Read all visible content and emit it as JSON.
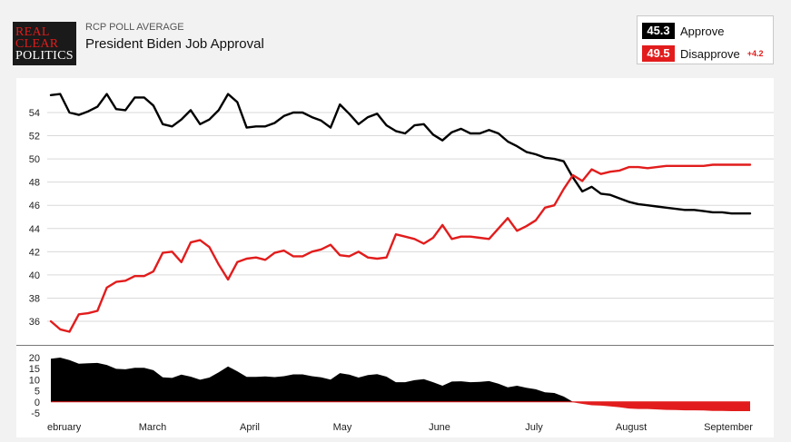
{
  "header": {
    "logo_line1": "REAL",
    "logo_line2": "CLEAR",
    "logo_line3": "POLITICS",
    "subtitle": "RCP POLL AVERAGE",
    "title": "President Biden Job Approval"
  },
  "legend": {
    "approve_value": "45.3",
    "approve_label": "Approve",
    "disapprove_value": "49.5",
    "disapprove_label": "Disapprove",
    "spread": "+4.2"
  },
  "colors": {
    "approve": "#000000",
    "disapprove": "#e21c1c",
    "grid": "#d9d9d9"
  },
  "chart_data": [
    {
      "type": "line",
      "title": "President Biden Job Approval",
      "ylim": [
        35,
        56
      ],
      "yticks": [
        36,
        38,
        40,
        42,
        44,
        46,
        48,
        50,
        52,
        54
      ],
      "grid": true,
      "x_month_labels": [
        "ebruary",
        "March",
        "April",
        "May",
        "June",
        "July",
        "August",
        "September"
      ],
      "x": [
        0,
        3,
        6,
        9,
        12,
        15,
        18,
        21,
        24,
        27,
        30,
        33,
        36,
        39,
        42,
        45,
        48,
        51,
        54,
        57,
        60,
        63,
        66,
        69,
        72,
        75,
        78,
        81,
        84,
        87,
        90,
        93,
        96,
        99,
        102,
        105,
        108,
        111,
        114,
        117,
        120,
        123,
        126,
        129,
        132,
        135,
        138,
        141,
        144,
        147,
        150,
        153,
        156,
        159,
        162,
        165,
        168,
        171,
        174,
        177,
        180,
        183,
        186,
        189,
        192,
        195,
        198,
        201,
        204,
        207,
        210,
        213,
        216,
        219,
        222,
        225
      ],
      "series": [
        {
          "name": "Approve",
          "color": "#000000",
          "values": [
            55.5,
            55.6,
            54.0,
            53.8,
            54.1,
            54.5,
            55.6,
            54.3,
            54.2,
            55.3,
            55.3,
            54.6,
            53.0,
            52.8,
            53.4,
            54.2,
            53.0,
            53.4,
            54.2,
            55.6,
            54.9,
            52.7,
            52.8,
            52.8,
            53.1,
            53.7,
            54.0,
            54.0,
            53.6,
            53.3,
            52.7,
            54.7,
            53.9,
            53.0,
            53.6,
            53.9,
            52.9,
            52.4,
            52.2,
            52.9,
            53.0,
            52.1,
            51.6,
            52.3,
            52.6,
            52.2,
            52.2,
            52.5,
            52.2,
            51.5,
            51.1,
            50.6,
            50.4,
            50.1,
            50.0,
            49.8,
            48.4,
            47.2,
            47.6,
            47.0,
            46.9,
            46.6,
            46.3,
            46.1,
            46.0,
            45.9,
            45.8,
            45.7,
            45.6,
            45.6,
            45.5,
            45.4,
            45.4,
            45.3,
            45.3,
            45.3
          ]
        },
        {
          "name": "Disapprove",
          "color": "#e21c1c",
          "values": [
            36.0,
            35.3,
            35.1,
            36.6,
            36.7,
            36.9,
            38.9,
            39.4,
            39.5,
            39.9,
            39.9,
            40.3,
            41.9,
            42.0,
            41.1,
            42.8,
            43.0,
            42.4,
            40.9,
            39.6,
            41.1,
            41.4,
            41.5,
            41.3,
            41.9,
            42.1,
            41.6,
            41.6,
            42.0,
            42.2,
            42.6,
            41.7,
            41.6,
            42.0,
            41.5,
            41.4,
            41.5,
            43.5,
            43.3,
            43.1,
            42.7,
            43.2,
            44.3,
            43.1,
            43.3,
            43.3,
            43.2,
            43.1,
            44.0,
            44.9,
            43.8,
            44.2,
            44.7,
            45.8,
            46.0,
            47.4,
            48.6,
            48.1,
            49.1,
            48.7,
            48.9,
            49.0,
            49.3,
            49.3,
            49.2,
            49.3,
            49.4,
            49.4,
            49.4,
            49.4,
            49.4,
            49.5,
            49.5,
            49.5,
            49.5,
            49.5
          ]
        }
      ]
    },
    {
      "type": "area",
      "title": "",
      "ylim": [
        -5,
        20
      ],
      "yticks": [
        20,
        15,
        10,
        5,
        0,
        -5
      ],
      "grid": false,
      "x": [
        0,
        3,
        6,
        9,
        12,
        15,
        18,
        21,
        24,
        27,
        30,
        33,
        36,
        39,
        42,
        45,
        48,
        51,
        54,
        57,
        60,
        63,
        66,
        69,
        72,
        75,
        78,
        81,
        84,
        87,
        90,
        93,
        96,
        99,
        102,
        105,
        108,
        111,
        114,
        117,
        120,
        123,
        126,
        129,
        132,
        135,
        138,
        141,
        144,
        147,
        150,
        153,
        156,
        159,
        162,
        165,
        168,
        171,
        174,
        177,
        180,
        183,
        186,
        189,
        192,
        195,
        198,
        201,
        204,
        207,
        210,
        213,
        216,
        219,
        222,
        225
      ],
      "series": [
        {
          "name": "Spread",
          "color": "#000000",
          "negative_color": "#e21c1c",
          "values": [
            19.5,
            20.0,
            18.9,
            17.2,
            17.4,
            17.6,
            16.7,
            14.9,
            14.7,
            15.4,
            15.4,
            14.3,
            11.1,
            10.8,
            12.3,
            11.4,
            10.0,
            11.0,
            13.3,
            16.0,
            13.8,
            11.3,
            11.3,
            11.5,
            11.2,
            11.6,
            12.4,
            12.4,
            11.6,
            11.1,
            10.1,
            13.0,
            12.3,
            11.0,
            12.1,
            12.5,
            11.4,
            8.9,
            8.9,
            9.8,
            10.3,
            8.9,
            7.3,
            9.2,
            9.3,
            8.9,
            9.0,
            9.4,
            8.2,
            6.6,
            7.3,
            6.4,
            5.7,
            4.3,
            4.0,
            2.4,
            -0.2,
            -0.9,
            -1.5,
            -1.7,
            -2.0,
            -2.4,
            -3.0,
            -3.2,
            -3.2,
            -3.4,
            -3.6,
            -3.7,
            -3.8,
            -3.8,
            -3.9,
            -4.1,
            -4.1,
            -4.2,
            -4.2,
            -4.2
          ]
        }
      ]
    }
  ]
}
